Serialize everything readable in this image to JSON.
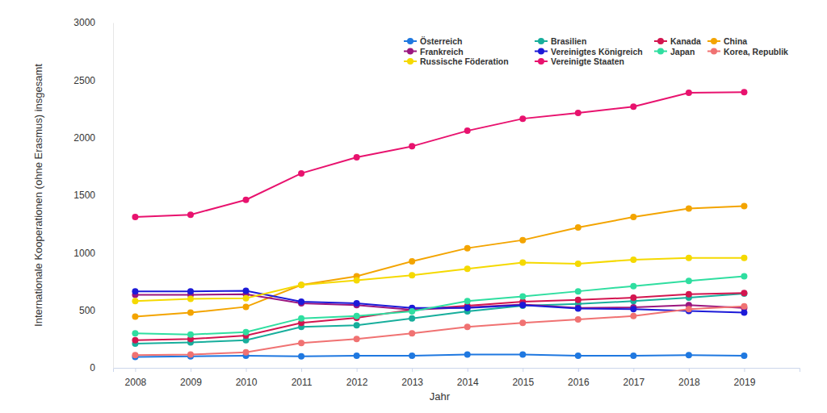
{
  "chart_data": {
    "type": "line",
    "x_label": "Jahr",
    "y_label": "Internationale Kooperationen (ohne Erasmus) insgesamt",
    "x": [
      2008,
      2009,
      2010,
      2011,
      2012,
      2013,
      2014,
      2015,
      2016,
      2017,
      2018,
      2019
    ],
    "xlim": [
      2007.6,
      2020
    ],
    "xticks": [
      2008,
      2009,
      2010,
      2011,
      2012,
      2013,
      2014,
      2015,
      2016,
      2017,
      2018,
      2019
    ],
    "ylim": [
      0,
      3000
    ],
    "yticks": [
      0,
      500,
      1000,
      1500,
      2000,
      2500,
      3000
    ],
    "grid": false,
    "legend": "top",
    "marker": "circle",
    "series": [
      {
        "name": "Österreich",
        "color": "#1f78e0",
        "values": [
          95,
          100,
          105,
          100,
          105,
          105,
          115,
          115,
          105,
          105,
          110,
          105
        ]
      },
      {
        "name": "Brasilien",
        "color": "#17ae9c",
        "values": [
          210,
          220,
          240,
          355,
          370,
          430,
          490,
          540,
          555,
          580,
          610,
          645
        ]
      },
      {
        "name": "Kanada",
        "color": "#d3154f",
        "values": [
          240,
          250,
          280,
          390,
          435,
          505,
          540,
          575,
          590,
          610,
          640,
          650
        ]
      },
      {
        "name": "China",
        "color": "#f3a400",
        "values": [
          445,
          480,
          530,
          720,
          795,
          925,
          1040,
          1110,
          1220,
          1310,
          1385,
          1405
        ]
      },
      {
        "name": "Frankreich",
        "color": "#9b167f",
        "values": [
          635,
          635,
          640,
          560,
          545,
          505,
          525,
          550,
          520,
          525,
          545,
          520
        ]
      },
      {
        "name": "Vereinigtes Königreich",
        "color": "#1c1ad8",
        "values": [
          665,
          665,
          670,
          575,
          560,
          520,
          520,
          545,
          515,
          510,
          495,
          480
        ]
      },
      {
        "name": "Japan",
        "color": "#2fdea0",
        "values": [
          300,
          290,
          310,
          430,
          450,
          490,
          580,
          620,
          665,
          710,
          755,
          795
        ]
      },
      {
        "name": "Korea, Republik",
        "color": "#f07272",
        "values": [
          110,
          115,
          135,
          215,
          250,
          300,
          355,
          390,
          420,
          450,
          510,
          535
        ]
      },
      {
        "name": "Russische Föderation",
        "color": "#f5d900",
        "values": [
          580,
          600,
          605,
          720,
          760,
          805,
          860,
          915,
          905,
          940,
          955,
          955
        ]
      },
      {
        "name": "Vereinigte Staaten",
        "color": "#e8126e",
        "values": [
          1310,
          1330,
          1460,
          1690,
          1830,
          1925,
          2060,
          2165,
          2215,
          2270,
          2390,
          2395
        ]
      }
    ]
  }
}
